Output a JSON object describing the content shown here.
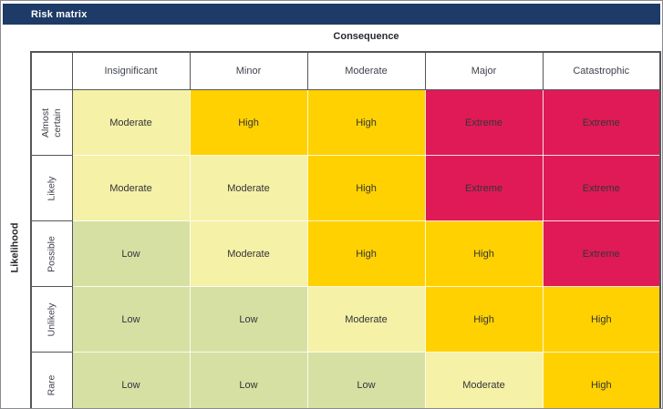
{
  "title": "Risk matrix",
  "colors": {
    "title_bar_bg": "#1E3A66",
    "title_text": "#FFFFFF",
    "grid_border": "#55565A",
    "low": "#D7E0A3",
    "moderate": "#F5F1A6",
    "high": "#FFD100",
    "extreme": "#E01A56"
  },
  "chart_data": {
    "type": "heatmap",
    "title": "Risk matrix",
    "column_axis_label": "Consequence",
    "row_axis_label": "Likelihood",
    "columns": [
      "Insignificant",
      "Minor",
      "Moderate",
      "Major",
      "Catastrophic"
    ],
    "rows": [
      "Almost certain",
      "Likely",
      "Possible",
      "Unlikely",
      "Rare"
    ],
    "values": [
      [
        "Moderate",
        "High",
        "High",
        "Extreme",
        "Extreme"
      ],
      [
        "Moderate",
        "Moderate",
        "High",
        "Extreme",
        "Extreme"
      ],
      [
        "Low",
        "Moderate",
        "High",
        "High",
        "Extreme"
      ],
      [
        "Low",
        "Low",
        "Moderate",
        "High",
        "High"
      ],
      [
        "Low",
        "Low",
        "Low",
        "Moderate",
        "High"
      ]
    ],
    "level_colors": {
      "Low": "#D7E0A3",
      "Moderate": "#F5F1A6",
      "High": "#FFD100",
      "Extreme": "#E01A56"
    },
    "legend": false,
    "grid": true
  }
}
